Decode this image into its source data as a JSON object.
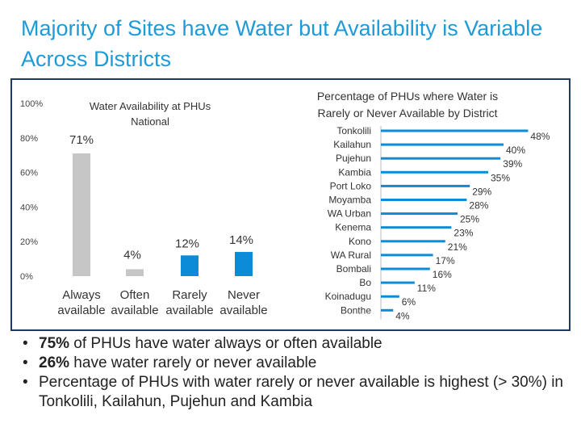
{
  "slide": {
    "title": "Majority of Sites have Water but Availability is Variable Across Districts"
  },
  "colors": {
    "title": "#1e9bd7",
    "gray_bar": "#c6c6c6",
    "blue_bar": "#0b8bd8",
    "frame": "#1f3864"
  },
  "chart_data": [
    {
      "type": "bar",
      "title": "Water Availability at PHUs",
      "subtitle": "National",
      "categories": [
        "Always available",
        "Often available",
        "Rarely available",
        "Never available"
      ],
      "category_lines": [
        [
          "Always",
          "available"
        ],
        [
          "Often",
          "available"
        ],
        [
          "Rarely",
          "available"
        ],
        [
          "Never",
          "available"
        ]
      ],
      "values": [
        71,
        4,
        12,
        14
      ],
      "data_labels": [
        "71%",
        "4%",
        "12%",
        "14%"
      ],
      "bar_colors": [
        "#c6c6c6",
        "#c6c6c6",
        "#0b8bd8",
        "#0b8bd8"
      ],
      "ylim": [
        0,
        100
      ],
      "yticks": [
        0,
        20,
        40,
        60,
        80,
        100
      ],
      "ytick_labels": [
        "0%",
        "20%",
        "40%",
        "60%",
        "80%",
        "100%"
      ],
      "grid": false
    },
    {
      "type": "bar",
      "orientation": "horizontal",
      "title": "Percentage of PHUs where Water is Rarely or Never Available by District",
      "title_lines": [
        "Percentage of PHUs where Water is",
        "Rarely or Never Available by District"
      ],
      "categories": [
        "Tonkolili",
        "Kailahun",
        "Pujehun",
        "Kambia",
        "Port Loko",
        "Moyamba",
        "WA Urban",
        "Kenema",
        "Kono",
        "WA Rural",
        "Bombali",
        "Bo",
        "Koinadugu",
        "Bonthe"
      ],
      "values": [
        48,
        40,
        39,
        35,
        29,
        28,
        25,
        23,
        21,
        17,
        16,
        11,
        6,
        4
      ],
      "data_labels": [
        "48%",
        "40%",
        "39%",
        "35%",
        "29%",
        "28%",
        "25%",
        "23%",
        "21%",
        "17%",
        "16%",
        "11%",
        "6%",
        "4%"
      ],
      "xlim": [
        0,
        50
      ],
      "color": "#0b8bd8"
    }
  ],
  "bullets": [
    {
      "bold": "75%",
      "text": " of PHUs have water always or often available"
    },
    {
      "bold": "26%",
      "text": " have water rarely or never available"
    },
    {
      "bold": "",
      "text": "Percentage of PHUs with water rarely or never available is highest (> 30%) in Tonkolili, Kailahun, Pujehun and Kambia"
    }
  ]
}
